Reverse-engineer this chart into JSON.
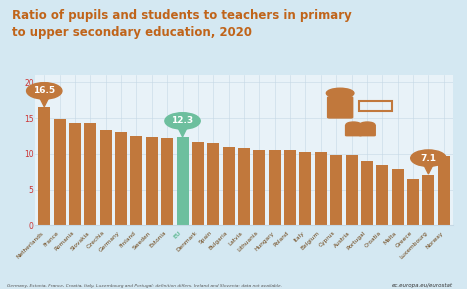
{
  "title": "Ratio of pupils and students to teachers in primary\nto upper secondary education, 2020",
  "categories": [
    "Netherlands",
    "France",
    "Romania",
    "Slovakia",
    "Czechia",
    "Germany",
    "Finland",
    "Sweden",
    "Estonia",
    "EU",
    "Denmark",
    "Spain",
    "Bulgaria",
    "Latvia",
    "Lithuania",
    "Hungary",
    "Poland",
    "Italy",
    "Belgium",
    "Cyprus",
    "Austria",
    "Portugal",
    "Croatia",
    "Malta",
    "Greece",
    "Luxembourg",
    "Norway"
  ],
  "values": [
    16.5,
    14.9,
    14.3,
    14.3,
    13.3,
    13.0,
    12.5,
    12.4,
    12.2,
    12.3,
    11.6,
    11.5,
    11.0,
    10.8,
    10.6,
    10.6,
    10.5,
    10.2,
    10.2,
    9.9,
    9.9,
    9.0,
    8.5,
    7.9,
    6.5,
    7.1,
    9.7
  ],
  "bar_color": "#c1783c",
  "eu_color": "#6dbf9e",
  "background_color": "#d4e8f2",
  "plot_bg_color": "#e8f2f8",
  "title_color": "#c0641a",
  "axis_color": "#cc3333",
  "grid_color": "#c5d8e5",
  "footer_text": "Germany, Estonia, France, Croatia, Italy, Luxembourg and Portugal: definition differs. Ireland and Slovenia: data not available.",
  "watermark": "ec.europa.eu/eurostat",
  "ylim": [
    0,
    21
  ],
  "yticks": [
    0,
    5,
    10,
    15,
    20
  ]
}
